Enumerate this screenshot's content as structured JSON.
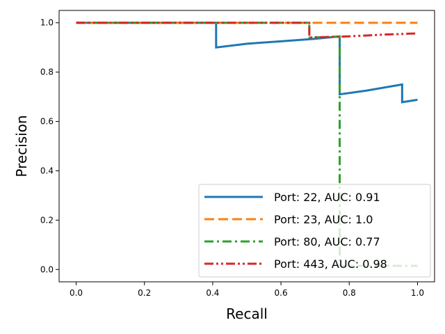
{
  "chart_data": {
    "type": "line",
    "title": "",
    "xlabel": "Recall",
    "ylabel": "Precision",
    "xlim": [
      -0.05,
      1.05
    ],
    "ylim": [
      -0.05,
      1.05
    ],
    "xticks": [
      "0.0",
      "0.2",
      "0.4",
      "0.6",
      "0.8",
      "1.0"
    ],
    "yticks": [
      "0.0",
      "0.2",
      "0.4",
      "0.6",
      "0.8",
      "1.0"
    ],
    "grid": false,
    "legend_position": "lower-right",
    "series": [
      {
        "name": "Port: 22, AUC: 0.91",
        "color": "#1f77b4",
        "style": "solid",
        "points": [
          [
            0.0,
            1.0
          ],
          [
            0.41,
            1.0
          ],
          [
            0.41,
            0.9
          ],
          [
            0.5,
            0.915
          ],
          [
            0.6,
            0.925
          ],
          [
            0.7,
            0.935
          ],
          [
            0.772,
            0.945
          ],
          [
            0.772,
            0.71
          ],
          [
            0.85,
            0.725
          ],
          [
            0.955,
            0.75
          ],
          [
            0.955,
            0.678
          ],
          [
            1.0,
            0.688
          ]
        ]
      },
      {
        "name": "Port: 23, AUC: 1.0",
        "color": "#ff7f0e",
        "style": "dashed",
        "points": [
          [
            0.0,
            1.0
          ],
          [
            1.0,
            1.0
          ]
        ]
      },
      {
        "name": "Port: 80, AUC: 0.77",
        "color": "#2ca02c",
        "style": "dashdot",
        "points": [
          [
            0.0,
            1.0
          ],
          [
            0.683,
            1.0
          ],
          [
            0.683,
            0.94
          ],
          [
            0.772,
            0.944
          ],
          [
            0.772,
            0.015
          ],
          [
            1.0,
            0.015
          ]
        ]
      },
      {
        "name": "Port: 443, AUC: 0.98",
        "color": "#d62728",
        "style": "dashdotdot",
        "points": [
          [
            0.0,
            1.0
          ],
          [
            0.683,
            1.0
          ],
          [
            0.683,
            0.94
          ],
          [
            0.8,
            0.945
          ],
          [
            0.9,
            0.952
          ],
          [
            1.0,
            0.957
          ]
        ]
      }
    ]
  }
}
